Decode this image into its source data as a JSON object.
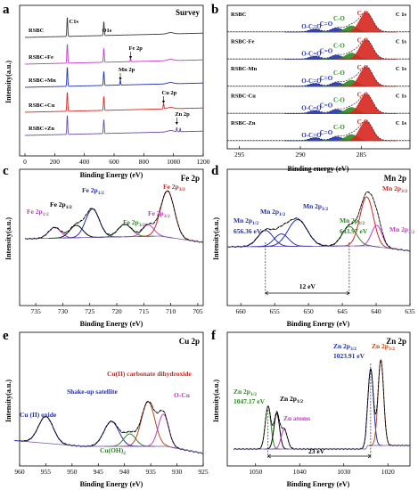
{
  "colors": {
    "red": "#d7261e",
    "blue": "#1f2fb5",
    "green": "#2a8a1d",
    "magenta": "#c038c8",
    "purple": "#6a4aa6",
    "brown": "#b84a1a",
    "dark": "#3a3a3a",
    "black": "#000000"
  },
  "chart_data": [
    {
      "id": "a",
      "type": "line",
      "panel_label": "a",
      "title": "Survey",
      "xlabel": "Binding Energy (eV)",
      "ylabel": "Intensity(a.u.)",
      "xlim": [
        0,
        1200
      ],
      "x_ticks": [
        "0",
        "200",
        "400",
        "600",
        "800",
        "1000",
        "1200"
      ],
      "series": [
        {
          "name": "RSBC",
          "color": "#3a3a3a"
        },
        {
          "name": "RSBC+Fe",
          "color": "#c038c8"
        },
        {
          "name": "RSBC+Mn",
          "color": "#1f2fb5"
        },
        {
          "name": "RSBC+Cu",
          "color": "#d7261e"
        },
        {
          "name": "RSBC+Zn",
          "color": "#6a4aa6"
        }
      ],
      "annotations": [
        {
          "text": "C1s",
          "x": 285
        },
        {
          "text": "O1s",
          "x": 531
        },
        {
          "text": "Fe 2p",
          "x": 711
        },
        {
          "text": "Mn 2p",
          "x": 642
        },
        {
          "text": "Cu 2p",
          "x": 933
        },
        {
          "text": "Zn 2p",
          "x": 1022
        }
      ]
    },
    {
      "id": "b",
      "type": "line",
      "panel_label": "b",
      "title": "C 1s",
      "xlabel": "Binding energy (eV)",
      "ylabel": "",
      "xlim": [
        296,
        281
      ],
      "x_ticks": [
        "295",
        "290",
        "285"
      ],
      "series": [
        {
          "name": "RSBC",
          "o_c_o": "O-C=O",
          "c_eq_o": "C=O",
          "c_o": "C-O",
          "c_c": "C-C"
        },
        {
          "name": "RSBC-Fe",
          "o_c_o": "O-C=O",
          "c_eq_o": "C=O",
          "c_o": "C-O",
          "c_c": "C-C"
        },
        {
          "name": "RSBC-Mn",
          "o_c_o": "O-C=O",
          "c_eq_o": "C=O",
          "c_o": "C-O",
          "c_c": "C-C"
        },
        {
          "name": "RSBC-Cu",
          "o_c_o": "O-C=O",
          "c_eq_o": "C=O",
          "c_o": "C-O",
          "c_c": "C-C"
        },
        {
          "name": "RSBC-Zn",
          "o_c_o": "O-C=O",
          "c_eq_o": "C=O",
          "c_o": "C-O",
          "c_c": "C-C"
        }
      ],
      "peak_positions": {
        "O-C=O": 288.8,
        "C=O": 287.0,
        "C-O": 285.8,
        "C-C": 284.6
      }
    },
    {
      "id": "c",
      "type": "line",
      "panel_label": "c",
      "title": "Fe 2p",
      "xlabel": "Binding Energy (eV)",
      "ylabel": "Intensity(a.u.)",
      "xlim": [
        737,
        704
      ],
      "x_ticks": [
        "735",
        "730",
        "725",
        "720",
        "715",
        "710",
        "705"
      ],
      "peaks": [
        {
          "label": "Fe 2p",
          "sub": "1/2",
          "center": 731.5,
          "color": "#c038c8"
        },
        {
          "label": "Fe 2p",
          "sub": "1/2",
          "center": 727.5,
          "color": "#000000"
        },
        {
          "label": "Fe 2p",
          "sub": "1/2",
          "center": 724.5,
          "color": "#1f2fb5"
        },
        {
          "label": "Fe 2p",
          "sub": "3/2",
          "center": 718.5,
          "color": "#2a8a1d"
        },
        {
          "label": "Fe 2p",
          "sub": "3/2",
          "center": 714.0,
          "color": "#c038c8"
        },
        {
          "label": "Fe 2p",
          "sub": "3/2",
          "center": 710.5,
          "color": "#d7261e"
        }
      ]
    },
    {
      "id": "d",
      "type": "line",
      "panel_label": "d",
      "title": "Mn 2p",
      "xlabel": "Binding Energy (eV)",
      "ylabel": "Intensity(a.u.)",
      "xlim": [
        662,
        635
      ],
      "x_ticks": [
        "660",
        "655",
        "650",
        "645",
        "640",
        "635"
      ],
      "peaks": [
        {
          "label": "Mn 2p",
          "sub": "1/2",
          "center": 656.36,
          "color": "#1f2fb5"
        },
        {
          "label": "Mn 2p",
          "sub": "1/2",
          "center": 654.0,
          "color": "#1f2fb5"
        },
        {
          "label": "Mn 2p",
          "sub": "1/2",
          "center": 652.0,
          "color": "#1f2fb5"
        },
        {
          "label": "Mn 2p",
          "sub": "3/2",
          "center": 643.97,
          "color": "#2a8a1d"
        },
        {
          "label": "Mn 2p",
          "sub": "3/2",
          "center": 641.5,
          "color": "#d7261e"
        },
        {
          "label": "Mn 2p",
          "sub": "3/2",
          "center": 640.0,
          "color": "#c038c8"
        }
      ],
      "annotations": {
        "e1": "656.36 eV",
        "e2": "643.97 eV",
        "split": "12 eV"
      }
    },
    {
      "id": "e",
      "type": "line",
      "panel_label": "e",
      "title": "Cu 2p",
      "xlabel": "Binding Energy (eV)",
      "ylabel": "Intensity(a.u.)",
      "xlim": [
        960,
        925
      ],
      "x_ticks": [
        "960",
        "955",
        "950",
        "945",
        "940",
        "935",
        "930",
        "925"
      ],
      "labels": {
        "cuo": "Cu (II) oxide",
        "satellite": "Shake-up satellite",
        "carbonate": "Cu(II) carbonate dihydroxide",
        "ocu": "O-Cu",
        "cuoh": "Cu(OH)",
        "cuoh_sub": "2"
      }
    },
    {
      "id": "f",
      "type": "line",
      "panel_label": "f",
      "title": "Zn 2p",
      "xlabel": "Binding Energy (eV)",
      "ylabel": "Intensity(a.u.)",
      "xlim": [
        1055,
        1015
      ],
      "x_ticks": [
        "1050",
        "1040",
        "1030",
        "1020"
      ],
      "labels": {
        "zn12": "Zn 2p",
        "zn12_sub": "1/2",
        "e1": "1047.17 eV",
        "zn12b": "Zn 2p",
        "zn12b_sub": "1/2",
        "atoms": "Zn atoms",
        "zn32a": "Zn 2p",
        "zn32a_sub": "3/2",
        "e2": "1023.91 eV",
        "zn32b": "Zn 2p",
        "zn32b_sub": "3/2",
        "split": "23 eV"
      }
    }
  ]
}
